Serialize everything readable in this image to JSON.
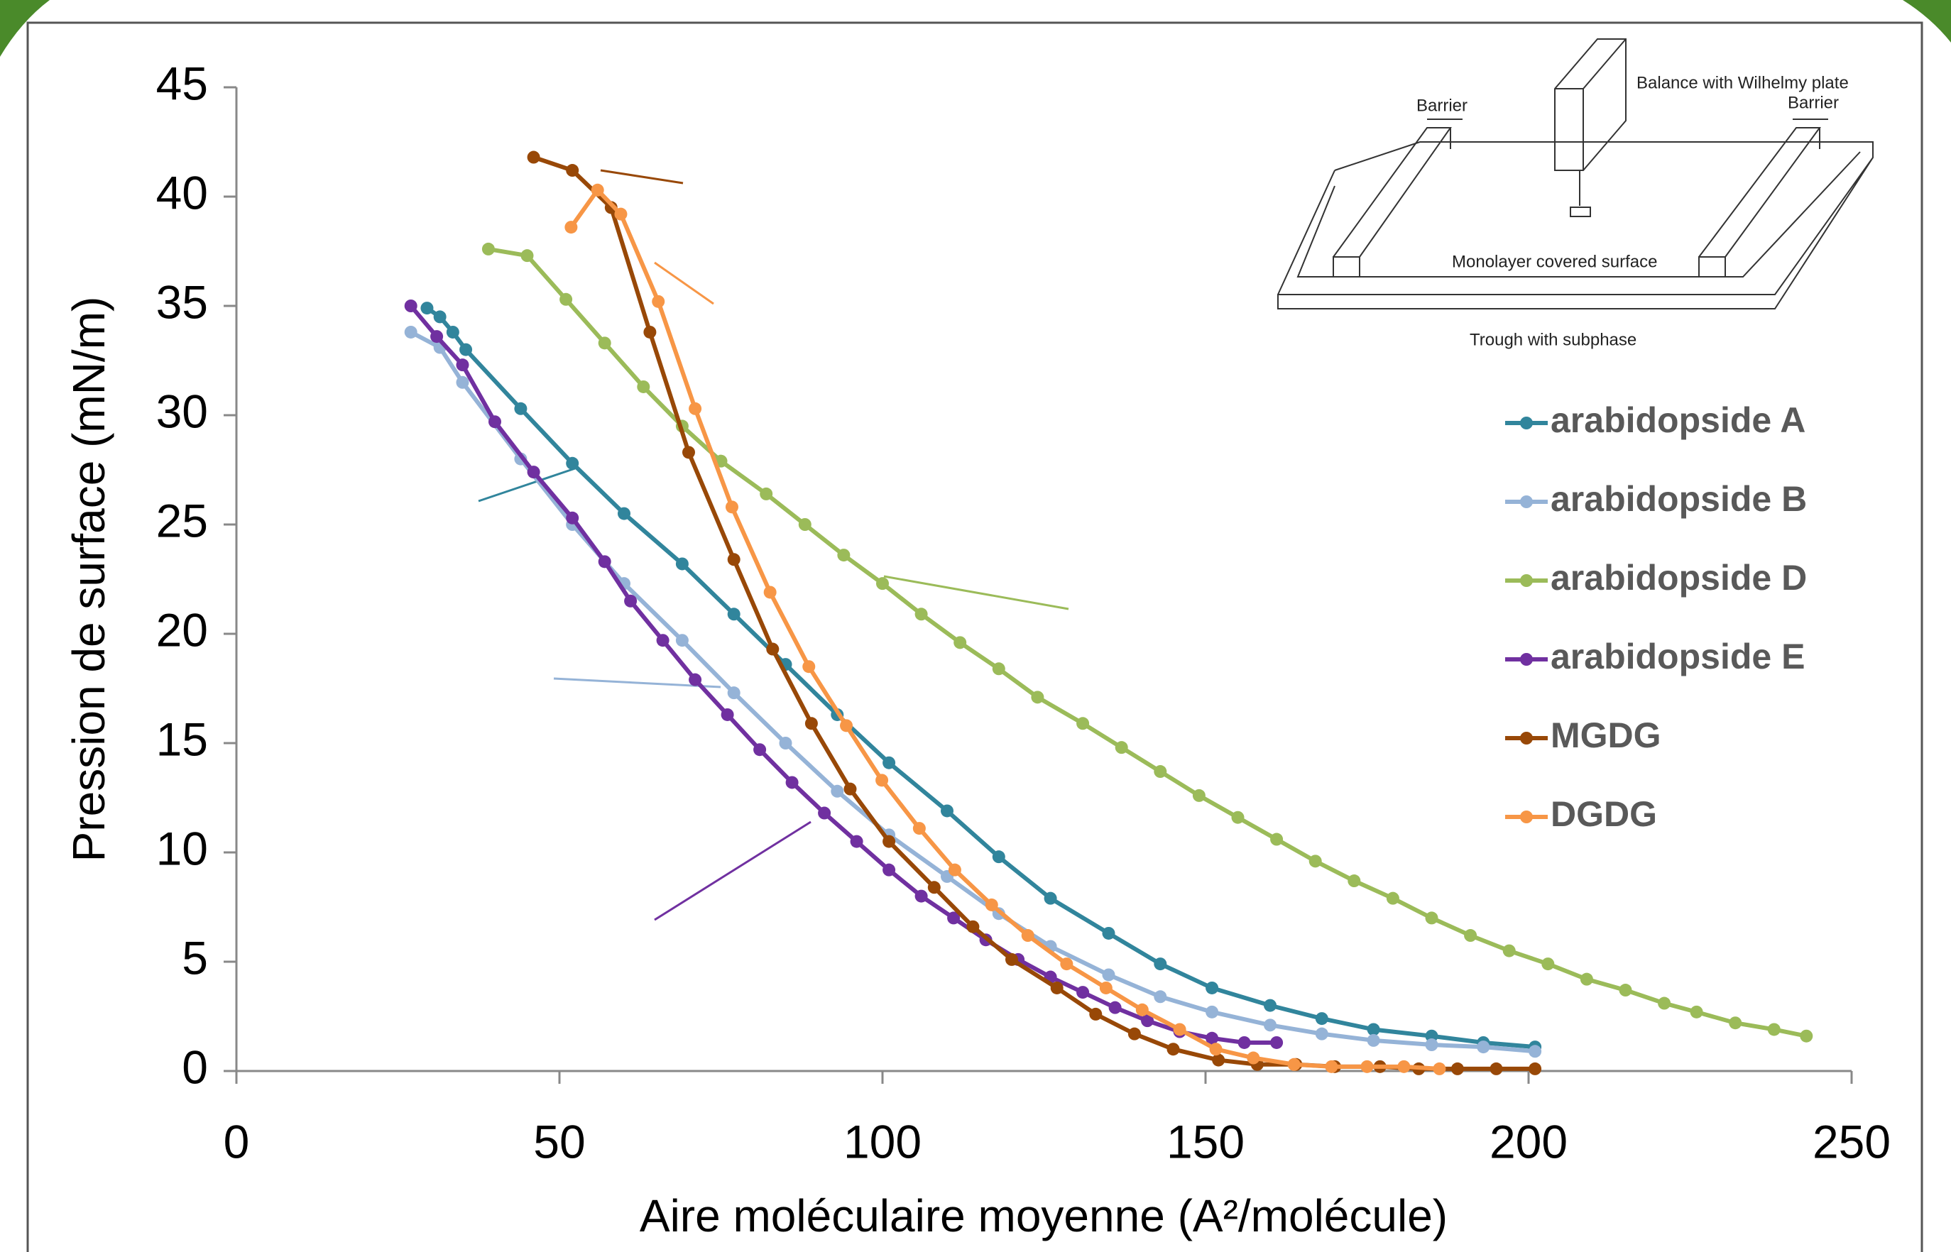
{
  "chart_data": {
    "type": "line",
    "x_label": "Aire moléculaire moyenne (A²/molécule)",
    "y_label": "Pression de surface (mN/m)",
    "xlim": [
      0,
      250
    ],
    "xticks": [
      0,
      50,
      100,
      150,
      200,
      250
    ],
    "ylim": [
      0,
      45
    ],
    "yticks": [
      0,
      5,
      10,
      15,
      20,
      25,
      30,
      35,
      40,
      45
    ],
    "legend": "right",
    "inset_labels": [
      "Balance with Wilhelmy plate",
      "Barrier",
      "Barrier",
      "Monolayer covered surface",
      "Trough with subphase"
    ],
    "series": [
      {
        "name": "arabidopside A",
        "color": "#31859c",
        "x": [
          29.5,
          31.5,
          33.5,
          35.5,
          44,
          52,
          60,
          69,
          77,
          85,
          93,
          101,
          110,
          118,
          126,
          135,
          143,
          151,
          160,
          168,
          176,
          185,
          193,
          201
        ],
        "values": [
          34.9,
          34.5,
          33.8,
          33.0,
          30.3,
          27.8,
          25.5,
          23.2,
          20.9,
          18.6,
          16.3,
          14.1,
          11.9,
          9.8,
          7.9,
          6.3,
          4.9,
          3.8,
          3.0,
          2.4,
          1.9,
          1.6,
          1.3,
          1.1
        ]
      },
      {
        "name": "arabidopside B",
        "color": "#95b3d7",
        "x": [
          27,
          31.5,
          35,
          44,
          52,
          60,
          69,
          77,
          85,
          93,
          101,
          110,
          118,
          126,
          135,
          143,
          151,
          160,
          168,
          176,
          185,
          193,
          201
        ],
        "values": [
          33.8,
          33.1,
          31.5,
          28.0,
          25.0,
          22.3,
          19.7,
          17.3,
          15.0,
          12.8,
          10.8,
          8.9,
          7.2,
          5.7,
          4.4,
          3.4,
          2.7,
          2.1,
          1.7,
          1.4,
          1.2,
          1.1,
          0.9
        ]
      },
      {
        "name": "arabidopside D",
        "color": "#9bbb59",
        "x": [
          39,
          45,
          51,
          57,
          63,
          69,
          75,
          82,
          88,
          94,
          100,
          106,
          112,
          118,
          124,
          131,
          137,
          143,
          149,
          155,
          161,
          167,
          173,
          179,
          185,
          191,
          197,
          203,
          209,
          215,
          221,
          226,
          232,
          238,
          243
        ],
        "values": [
          37.6,
          37.3,
          35.3,
          33.3,
          31.3,
          29.5,
          27.9,
          26.4,
          25.0,
          23.6,
          22.3,
          20.9,
          19.6,
          18.4,
          17.1,
          15.9,
          14.8,
          13.7,
          12.6,
          11.6,
          10.6,
          9.6,
          8.7,
          7.9,
          7.0,
          6.2,
          5.5,
          4.9,
          4.2,
          3.7,
          3.1,
          2.7,
          2.2,
          1.9,
          1.6
        ]
      },
      {
        "name": "arabidopside E",
        "color": "#7030a0",
        "x": [
          27,
          31,
          35,
          40,
          46,
          52,
          57,
          61,
          66,
          71,
          76,
          81,
          86,
          91,
          96,
          101,
          106,
          111,
          116,
          121,
          126,
          131,
          136,
          141,
          146,
          151,
          156,
          161
        ],
        "values": [
          35.0,
          33.6,
          32.3,
          29.7,
          27.4,
          25.3,
          23.3,
          21.5,
          19.7,
          17.9,
          16.3,
          14.7,
          13.2,
          11.8,
          10.5,
          9.2,
          8.0,
          7.0,
          6.0,
          5.1,
          4.3,
          3.6,
          2.9,
          2.3,
          1.8,
          1.5,
          1.3,
          1.3
        ]
      },
      {
        "name": "MGDG",
        "color": "#984807",
        "x": [
          46,
          52,
          58,
          64,
          70,
          77,
          83,
          89,
          95,
          101,
          108,
          114,
          120,
          127,
          133,
          139,
          145,
          152,
          158,
          164,
          170,
          177,
          183,
          189,
          195,
          201
        ],
        "values": [
          41.8,
          41.2,
          39.5,
          33.8,
          28.3,
          23.4,
          19.3,
          15.9,
          12.9,
          10.5,
          8.4,
          6.6,
          5.1,
          3.8,
          2.6,
          1.7,
          1.0,
          0.5,
          0.3,
          0.3,
          0.2,
          0.2,
          0.1,
          0.1,
          0.1,
          0.1
        ]
      },
      {
        "name": "DGDG",
        "color": "#f79646",
        "x": [
          51.8,
          55.9,
          59.5,
          65.3,
          71,
          76.7,
          82.6,
          88.6,
          94.4,
          99.9,
          105.7,
          111.2,
          116.9,
          122.5,
          128.5,
          134.6,
          140.2,
          146,
          151.6,
          157.4,
          163.7,
          169.5,
          175,
          180.7,
          186.2
        ],
        "values": [
          38.6,
          40.3,
          39.2,
          35.2,
          30.3,
          25.8,
          21.9,
          18.5,
          15.8,
          13.3,
          11.1,
          9.2,
          7.6,
          6.2,
          4.9,
          3.8,
          2.8,
          1.9,
          1.0,
          0.6,
          0.3,
          0.2,
          0.2,
          0.2,
          0.1
        ]
      }
    ]
  }
}
